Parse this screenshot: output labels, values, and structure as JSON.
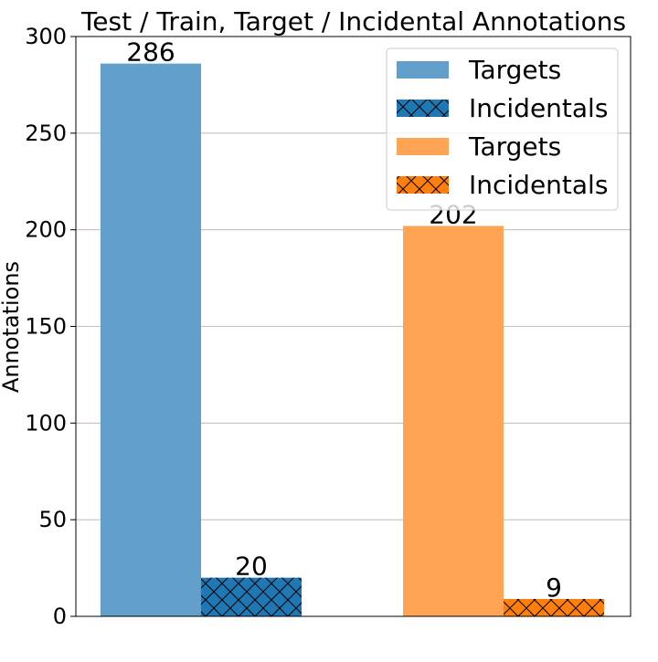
{
  "chart_data": {
    "type": "bar",
    "title": "Test / Train, Target / Incidental Annotations",
    "xlabel": "",
    "ylabel": "Annotations",
    "ylim": [
      0,
      300
    ],
    "yticks": [
      0,
      50,
      100,
      150,
      200,
      250,
      300
    ],
    "grid": "y",
    "legend_position": "top-right",
    "bars": [
      {
        "name": "Targets",
        "group": 0,
        "slot": 0,
        "value": 286,
        "label": "286",
        "color": "#62a0cb",
        "hatch": false
      },
      {
        "name": "Incidentals",
        "group": 0,
        "slot": 1,
        "value": 20,
        "label": "20",
        "color": "#1f77b4",
        "hatch": true
      },
      {
        "name": "Targets",
        "group": 1,
        "slot": 0,
        "value": 202,
        "label": "202",
        "color": "#ffa354",
        "hatch": false
      },
      {
        "name": "Incidentals",
        "group": 1,
        "slot": 1,
        "value": 9,
        "label": "9",
        "color": "#ff7f0e",
        "hatch": true
      }
    ],
    "legend": [
      {
        "name": "Targets",
        "color": "#62a0cb",
        "hatch": false
      },
      {
        "name": "Incidentals",
        "color": "#1f77b4",
        "hatch": true
      },
      {
        "name": "Targets",
        "color": "#ffa354",
        "hatch": false
      },
      {
        "name": "Incidentals",
        "color": "#ff7f0e",
        "hatch": true
      }
    ]
  }
}
